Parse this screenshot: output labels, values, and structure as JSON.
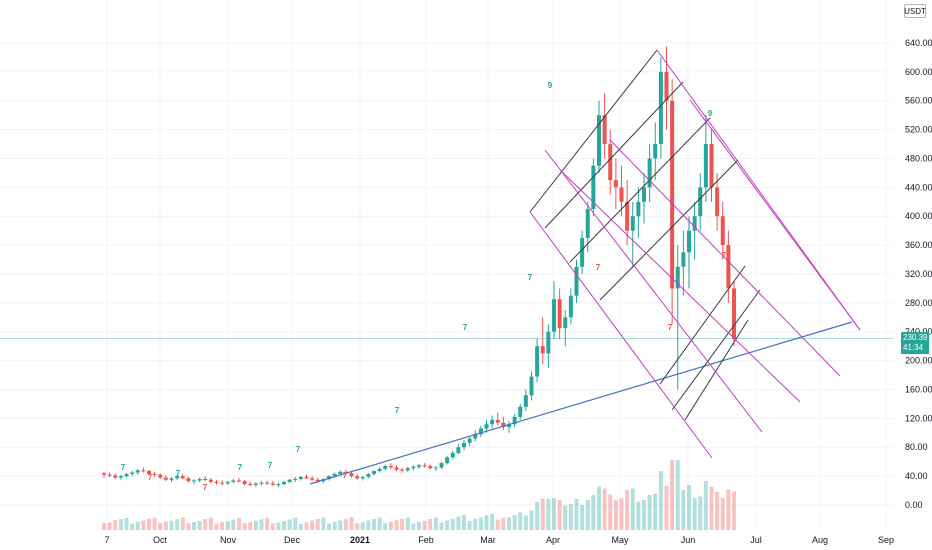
{
  "currency": "USDT",
  "price_tag": {
    "price": "230.39",
    "countdown": "41:34"
  },
  "colors": {
    "up": "#26a69a",
    "down": "#ef5350",
    "trendline": "#4472c4",
    "pitchfork_black": "#3a3a3a",
    "pitchfork_magenta": "#c43cc4",
    "current_price_line": "#26a69a"
  },
  "chart_data": {
    "type": "candlestick",
    "y_ticks": [
      "640.00",
      "600.00",
      "560.00",
      "520.00",
      "480.00",
      "440.00",
      "400.00",
      "360.00",
      "320.00",
      "280.00",
      "240.00",
      "200.00",
      "160.00",
      "120.00",
      "80.00",
      "40.00",
      "0.00"
    ],
    "x_ticks": [
      "7",
      "Oct",
      "Nov",
      "Dec",
      "2021",
      "Feb",
      "Mar",
      "Apr",
      "May",
      "Jun",
      "Jul",
      "Aug",
      "Sep"
    ],
    "ylim": [
      0,
      640
    ],
    "current_price": 230.39,
    "series": [
      {
        "values": [
          [
            44,
            46,
            38,
            42
          ],
          [
            42,
            45,
            39,
            41
          ],
          [
            41,
            44,
            36,
            38
          ],
          [
            38,
            42,
            35,
            40
          ],
          [
            40,
            44,
            38,
            43
          ],
          [
            43,
            47,
            40,
            45
          ],
          [
            45,
            50,
            42,
            48
          ],
          [
            48,
            52,
            45,
            47
          ],
          [
            47,
            49,
            41,
            43
          ],
          [
            43,
            46,
            39,
            42
          ],
          [
            42,
            44,
            36,
            38
          ],
          [
            38,
            41,
            33,
            35
          ],
          [
            35,
            39,
            32,
            37
          ],
          [
            37,
            42,
            35,
            40
          ],
          [
            40,
            43,
            36,
            37
          ],
          [
            37,
            39,
            31,
            33
          ],
          [
            33,
            36,
            29,
            34
          ],
          [
            34,
            38,
            32,
            36
          ],
          [
            36,
            40,
            33,
            35
          ],
          [
            35,
            37,
            30,
            32
          ],
          [
            32,
            35,
            28,
            31
          ],
          [
            31,
            34,
            27,
            30
          ],
          [
            30,
            33,
            28,
            32
          ],
          [
            32,
            36,
            30,
            34
          ],
          [
            34,
            37,
            31,
            33
          ],
          [
            33,
            35,
            27,
            29
          ],
          [
            29,
            32,
            26,
            28
          ],
          [
            28,
            31,
            25,
            30
          ],
          [
            30,
            33,
            27,
            31
          ],
          [
            31,
            34,
            28,
            30
          ],
          [
            30,
            33,
            26,
            28
          ],
          [
            28,
            31,
            25,
            29
          ],
          [
            29,
            33,
            27,
            32
          ],
          [
            32,
            36,
            30,
            35
          ],
          [
            35,
            39,
            32,
            36
          ],
          [
            36,
            40,
            34,
            39
          ],
          [
            39,
            42,
            36,
            37
          ],
          [
            37,
            40,
            33,
            35
          ],
          [
            35,
            38,
            31,
            33
          ],
          [
            33,
            37,
            30,
            36
          ],
          [
            36,
            41,
            34,
            40
          ],
          [
            40,
            45,
            38,
            43
          ],
          [
            43,
            48,
            41,
            46
          ],
          [
            46,
            49,
            42,
            44
          ],
          [
            44,
            46,
            38,
            40
          ],
          [
            40,
            43,
            35,
            37
          ],
          [
            37,
            40,
            34,
            39
          ],
          [
            39,
            44,
            37,
            43
          ],
          [
            43,
            48,
            41,
            47
          ],
          [
            47,
            52,
            45,
            50
          ],
          [
            50,
            56,
            48,
            54
          ],
          [
            54,
            58,
            50,
            52
          ],
          [
            52,
            55,
            47,
            49
          ],
          [
            49,
            52,
            45,
            48
          ],
          [
            48,
            53,
            46,
            51
          ],
          [
            51,
            55,
            48,
            53
          ],
          [
            53,
            57,
            50,
            55
          ],
          [
            55,
            58,
            52,
            54
          ],
          [
            54,
            56,
            49,
            51
          ],
          [
            51,
            54,
            47,
            52
          ],
          [
            52,
            60,
            50,
            58
          ],
          [
            58,
            68,
            56,
            66
          ],
          [
            66,
            75,
            63,
            72
          ],
          [
            72,
            84,
            70,
            80
          ],
          [
            80,
            90,
            76,
            86
          ],
          [
            86,
            96,
            82,
            92
          ],
          [
            92,
            104,
            88,
            98
          ],
          [
            98,
            110,
            94,
            106
          ],
          [
            106,
            118,
            100,
            112
          ],
          [
            112,
            124,
            106,
            118
          ],
          [
            118,
            128,
            110,
            114
          ],
          [
            114,
            122,
            104,
            108
          ],
          [
            108,
            116,
            100,
            112
          ],
          [
            112,
            126,
            108,
            122
          ],
          [
            122,
            140,
            118,
            136
          ],
          [
            136,
            160,
            130,
            152
          ],
          [
            152,
            185,
            145,
            178
          ],
          [
            178,
            230,
            170,
            220
          ],
          [
            220,
            260,
            195,
            210
          ],
          [
            210,
            250,
            190,
            240
          ],
          [
            240,
            310,
            230,
            285
          ],
          [
            285,
            300,
            230,
            245
          ],
          [
            245,
            270,
            220,
            260
          ],
          [
            260,
            300,
            250,
            290
          ],
          [
            290,
            340,
            280,
            330
          ],
          [
            330,
            380,
            320,
            370
          ],
          [
            370,
            420,
            350,
            410
          ],
          [
            410,
            480,
            400,
            470
          ],
          [
            470,
            560,
            460,
            540
          ],
          [
            540,
            570,
            480,
            500
          ],
          [
            500,
            520,
            430,
            450
          ],
          [
            450,
            480,
            410,
            440
          ],
          [
            440,
            470,
            400,
            420
          ],
          [
            420,
            450,
            360,
            380
          ],
          [
            380,
            420,
            330,
            400
          ],
          [
            400,
            440,
            370,
            420
          ],
          [
            420,
            460,
            390,
            440
          ],
          [
            440,
            500,
            420,
            480
          ],
          [
            480,
            530,
            450,
            500
          ],
          [
            500,
            620,
            480,
            600
          ],
          [
            600,
            635,
            520,
            560
          ],
          [
            560,
            590,
            250,
            300
          ],
          [
            300,
            360,
            160,
            330
          ],
          [
            330,
            380,
            290,
            350
          ],
          [
            350,
            400,
            300,
            380
          ],
          [
            380,
            420,
            340,
            400
          ],
          [
            400,
            460,
            380,
            440
          ],
          [
            440,
            540,
            420,
            500
          ],
          [
            500,
            520,
            420,
            440
          ],
          [
            440,
            460,
            380,
            400
          ],
          [
            400,
            420,
            340,
            360
          ],
          [
            360,
            380,
            280,
            300
          ],
          [
            300,
            310,
            220,
            230
          ]
        ]
      }
    ]
  }
}
